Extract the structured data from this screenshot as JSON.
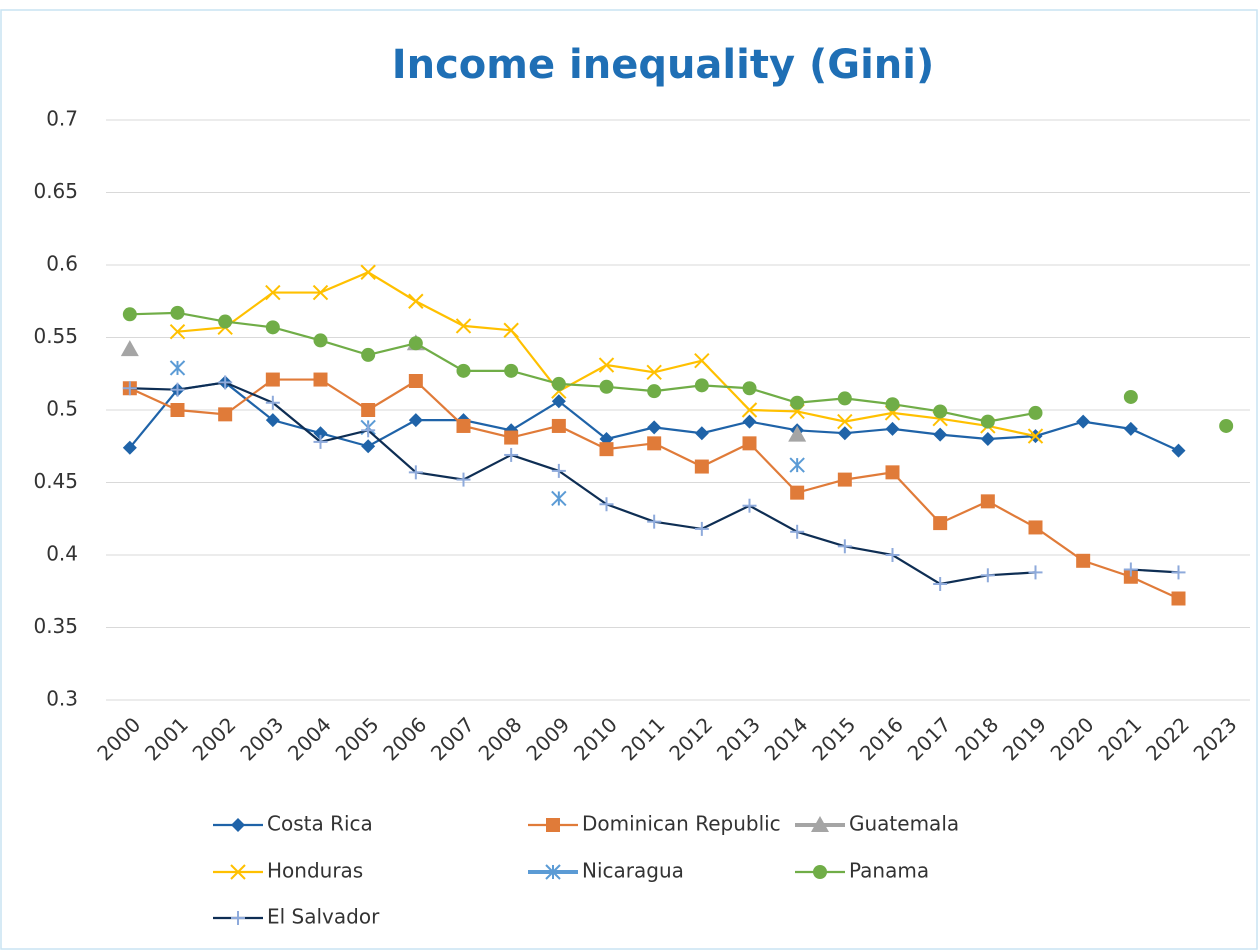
{
  "chart_data": {
    "type": "line",
    "title": "Income inequality (Gini)",
    "categories": [
      "2000",
      "2001",
      "2002",
      "2003",
      "2004",
      "2005",
      "2006",
      "2007",
      "2008",
      "2009",
      "2010",
      "2011",
      "2012",
      "2013",
      "2014",
      "2015",
      "2016",
      "2017",
      "2018",
      "2019",
      "2020",
      "2021",
      "2022",
      "2023"
    ],
    "ylim": [
      0.3,
      0.7
    ],
    "yticks": [
      0.3,
      0.35,
      0.4,
      0.45,
      0.5,
      0.55,
      0.6,
      0.65,
      0.7
    ],
    "grid": true,
    "legend": "bottom",
    "series": [
      {
        "name": "Costa Rica",
        "color": "#1f63a8",
        "marker": "diamond",
        "values": [
          0.474,
          0.514,
          0.519,
          0.493,
          0.484,
          0.475,
          0.493,
          0.493,
          0.486,
          0.506,
          0.48,
          0.488,
          0.484,
          0.492,
          0.486,
          0.484,
          0.487,
          0.483,
          0.48,
          0.482,
          0.492,
          0.487,
          0.472,
          null
        ]
      },
      {
        "name": "Dominican Republic",
        "color": "#e07b39",
        "marker": "square",
        "values": [
          0.515,
          0.5,
          0.497,
          0.521,
          0.521,
          0.5,
          0.52,
          0.489,
          0.481,
          0.489,
          0.473,
          0.477,
          0.461,
          0.477,
          0.443,
          0.452,
          0.457,
          0.422,
          0.437,
          0.419,
          0.396,
          0.385,
          0.37,
          null
        ]
      },
      {
        "name": "Guatemala",
        "color": "#a5a5a5",
        "marker": "triangle",
        "values": [
          0.542,
          null,
          null,
          null,
          null,
          null,
          0.546,
          null,
          null,
          null,
          null,
          null,
          null,
          null,
          0.483,
          null,
          null,
          null,
          null,
          null,
          null,
          null,
          null,
          null
        ]
      },
      {
        "name": "Honduras",
        "color": "#ffc000",
        "marker": "x",
        "values": [
          null,
          0.554,
          0.557,
          0.581,
          0.581,
          0.595,
          0.575,
          0.558,
          0.555,
          0.513,
          0.531,
          0.526,
          0.534,
          0.5,
          0.499,
          0.492,
          0.498,
          0.494,
          0.489,
          0.482,
          null,
          null,
          null,
          null
        ]
      },
      {
        "name": "Nicaragua",
        "color": "#5b9bd5",
        "marker": "asterisk",
        "values": [
          null,
          0.529,
          null,
          null,
          null,
          0.488,
          null,
          null,
          null,
          0.439,
          null,
          null,
          null,
          null,
          0.462,
          null,
          null,
          null,
          null,
          null,
          null,
          null,
          null,
          null
        ]
      },
      {
        "name": "Panama",
        "color": "#70ad47",
        "marker": "circle",
        "values": [
          0.566,
          0.567,
          0.561,
          0.557,
          0.548,
          0.538,
          0.546,
          0.527,
          0.527,
          0.518,
          0.516,
          0.513,
          0.517,
          0.515,
          0.505,
          0.508,
          0.504,
          0.499,
          0.492,
          0.498,
          null,
          0.509,
          null,
          0.489
        ]
      },
      {
        "name": "El Salvador",
        "color": "#0e2e54",
        "marker_color": "#8eaadb",
        "marker": "plus",
        "values": [
          0.515,
          0.514,
          0.519,
          0.505,
          0.478,
          0.486,
          0.457,
          0.452,
          0.469,
          0.458,
          0.435,
          0.423,
          0.418,
          0.434,
          0.416,
          0.406,
          0.4,
          0.38,
          0.386,
          0.388,
          null,
          0.39,
          0.388,
          null
        ]
      }
    ]
  }
}
